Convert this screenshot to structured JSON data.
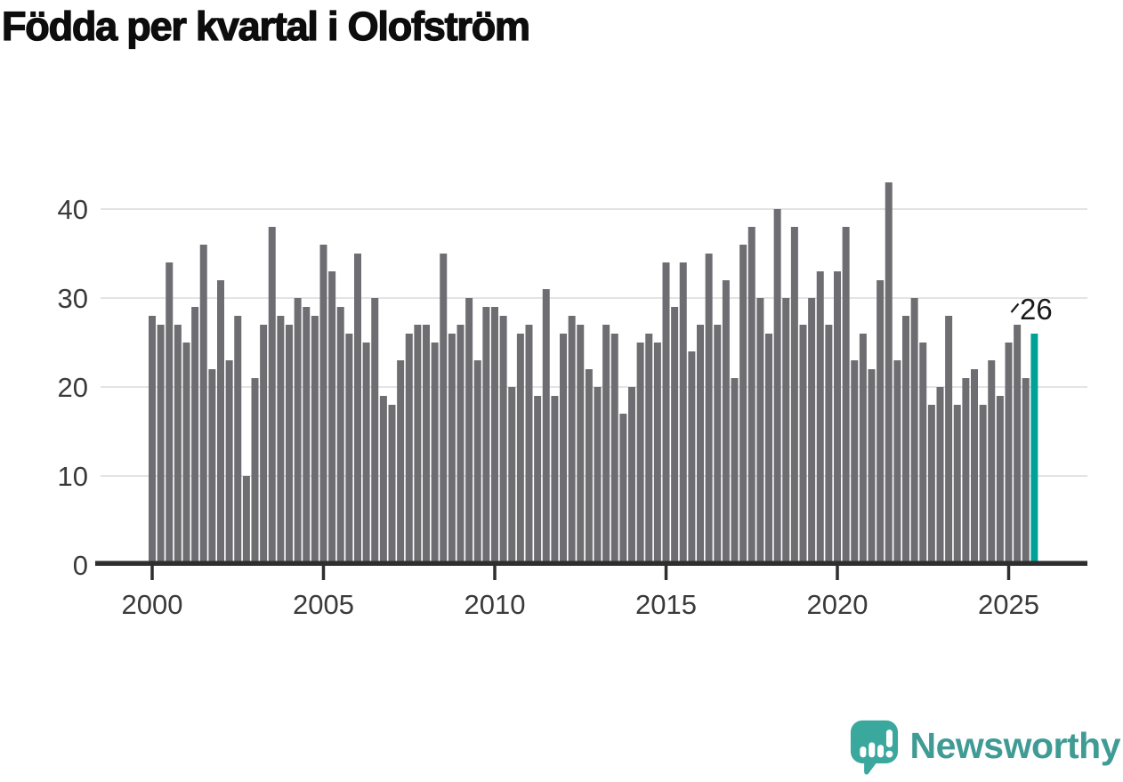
{
  "title": "Födda per kvartal i Olofström",
  "chart_data": {
    "type": "bar",
    "title": "Födda per kvartal i Olofström",
    "categories": [
      "2000 Q1",
      "2000 Q2",
      "2000 Q3",
      "2000 Q4",
      "2001 Q1",
      "2001 Q2",
      "2001 Q3",
      "2001 Q4",
      "2002 Q1",
      "2002 Q2",
      "2002 Q3",
      "2002 Q4",
      "2003 Q1",
      "2003 Q2",
      "2003 Q3",
      "2003 Q4",
      "2004 Q1",
      "2004 Q2",
      "2004 Q3",
      "2004 Q4",
      "2005 Q1",
      "2005 Q2",
      "2005 Q3",
      "2005 Q4",
      "2006 Q1",
      "2006 Q2",
      "2006 Q3",
      "2006 Q4",
      "2007 Q1",
      "2007 Q2",
      "2007 Q3",
      "2007 Q4",
      "2008 Q1",
      "2008 Q2",
      "2008 Q3",
      "2008 Q4",
      "2009 Q1",
      "2009 Q2",
      "2009 Q3",
      "2009 Q4",
      "2010 Q1",
      "2010 Q2",
      "2010 Q3",
      "2010 Q4",
      "2011 Q1",
      "2011 Q2",
      "2011 Q3",
      "2011 Q4",
      "2012 Q1",
      "2012 Q2",
      "2012 Q3",
      "2012 Q4",
      "2013 Q1",
      "2013 Q2",
      "2013 Q3",
      "2013 Q4",
      "2014 Q1",
      "2014 Q2",
      "2014 Q3",
      "2014 Q4",
      "2015 Q1",
      "2015 Q2",
      "2015 Q3",
      "2015 Q4",
      "2016 Q1",
      "2016 Q2",
      "2016 Q3",
      "2016 Q4",
      "2017 Q1",
      "2017 Q2",
      "2017 Q3",
      "2017 Q4",
      "2018 Q1",
      "2018 Q2",
      "2018 Q3",
      "2018 Q4",
      "2019 Q1",
      "2019 Q2",
      "2019 Q3",
      "2019 Q4",
      "2020 Q1",
      "2020 Q2",
      "2020 Q3",
      "2020 Q4",
      "2021 Q1",
      "2021 Q2",
      "2021 Q3",
      "2021 Q4",
      "2022 Q1",
      "2022 Q2",
      "2022 Q3",
      "2022 Q4",
      "2023 Q1",
      "2023 Q2",
      "2023 Q3",
      "2023 Q4",
      "2024 Q1",
      "2024 Q2",
      "2024 Q3",
      "2024 Q4",
      "2025 Q1",
      "2025 Q2",
      "2025 Q3",
      "2025 Q4"
    ],
    "values": [
      28,
      27,
      34,
      27,
      25,
      29,
      36,
      22,
      32,
      23,
      28,
      10,
      21,
      27,
      38,
      28,
      27,
      30,
      29,
      28,
      36,
      33,
      29,
      26,
      35,
      25,
      30,
      19,
      18,
      23,
      26,
      27,
      27,
      25,
      35,
      26,
      27,
      30,
      23,
      29,
      29,
      28,
      20,
      26,
      27,
      19,
      31,
      19,
      26,
      28,
      27,
      22,
      20,
      27,
      26,
      17,
      20,
      25,
      26,
      25,
      34,
      29,
      34,
      24,
      27,
      35,
      27,
      32,
      21,
      36,
      38,
      30,
      26,
      40,
      30,
      38,
      27,
      30,
      33,
      27,
      33,
      38,
      23,
      26,
      22,
      32,
      43,
      23,
      28,
      30,
      25,
      18,
      20,
      28,
      18,
      21,
      22,
      18,
      23,
      19,
      25,
      27,
      21,
      26
    ],
    "highlight": {
      "index": 103,
      "category": "2025 Q4",
      "value": 26,
      "label": "26"
    },
    "xlabel": "",
    "ylabel": "",
    "ylim": [
      0,
      45
    ],
    "yticks": [
      0,
      10,
      20,
      30,
      40
    ],
    "xtick_labels": [
      "2000",
      "2005",
      "2010",
      "2015",
      "2020",
      "2025"
    ],
    "xtick_quarter_indices": [
      0,
      20,
      40,
      60,
      80,
      100
    ],
    "grid": "horizontal",
    "legend": "none",
    "bar_color": "#6e6d72",
    "highlight_color": "#00a298",
    "gridline_color": "#e3e3e3",
    "axis_color": "#2e2e2e",
    "tick_label_color": "#3a3a3a",
    "annotation_color": "#1a1a1a"
  },
  "branding": {
    "logo_text": "Newsworthy",
    "logo_icon": "speech-bubble-bar-chart",
    "logo_color": "#3f9b94",
    "icon_color": "#3ba89e"
  }
}
